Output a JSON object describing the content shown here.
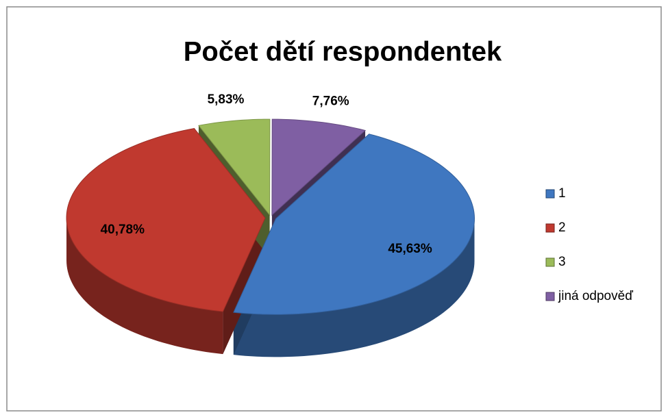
{
  "chart_data": {
    "type": "pie",
    "title": "Počet dětí respondentek",
    "categories": [
      "1",
      "2",
      "3",
      "jiná odpověď"
    ],
    "values": [
      45.63,
      40.78,
      5.83,
      7.76
    ],
    "value_labels": [
      "45,63%",
      "40,78%",
      "5,83%",
      "7,76%"
    ],
    "colors": [
      "#3f77c0",
      "#c0392f",
      "#9bbb59",
      "#7f5fa3"
    ],
    "legend": "right"
  }
}
